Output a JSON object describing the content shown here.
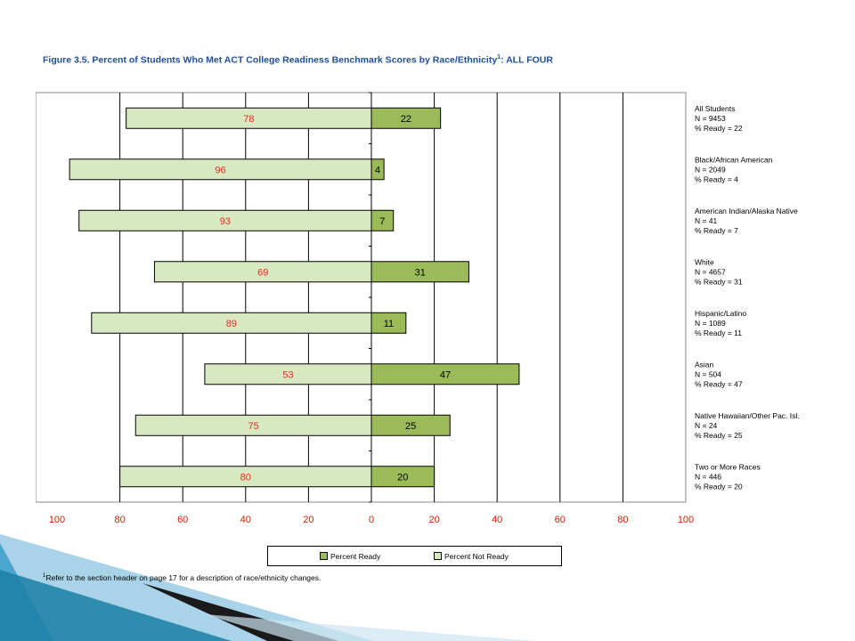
{
  "figure": {
    "title": "Figure 3.5.  Percent of Students Who Met ACT College Readiness Benchmark Scores by Race/Ethnicity",
    "title_sup": "1",
    "title_suffix": ": ALL FOUR"
  },
  "legend": {
    "ready_label": "Percent Ready",
    "not_ready_label": "Percent Not Ready"
  },
  "footnote": {
    "marker": "1",
    "text": "Refer to the section header on page 17 for a description of race/ethnicity changes."
  },
  "colors": {
    "ready": "#9bbb59",
    "not_ready": "#d8e8c1",
    "not_ready_label": "#e03020",
    "tick_label": "#cc2200",
    "title": "#1f4e9a",
    "slide_teal": "#1b7fa5"
  },
  "chart_data": {
    "type": "bar",
    "orientation": "horizontal-diverging",
    "xlim": [
      -100,
      100
    ],
    "x_ticks": [
      -100,
      -80,
      -60,
      -40,
      -20,
      0,
      20,
      40,
      60,
      80,
      100
    ],
    "x_tick_labels": [
      "100",
      "80",
      "60",
      "40",
      "20",
      "0",
      "20",
      "40",
      "60",
      "80",
      "100"
    ],
    "grid": true,
    "legend_position": "bottom",
    "categories": [
      {
        "name": "All Students",
        "n_label": "N = 9453",
        "ready_label": "% Ready = 22"
      },
      {
        "name": "Black/African American",
        "n_label": "N = 2049",
        "ready_label": "% Ready = 4"
      },
      {
        "name": "American Indian/Alaska Native",
        "n_label": "N = 41",
        "ready_label": "% Ready = 7"
      },
      {
        "name": "White",
        "n_label": "N = 4657",
        "ready_label": "% Ready = 31"
      },
      {
        "name": "Hispanic/Latino",
        "n_label": "N = 1089",
        "ready_label": "% Ready = 11"
      },
      {
        "name": "Asian",
        "n_label": "N = 504",
        "ready_label": "% Ready = 47"
      },
      {
        "name": "Native Hawaiian/Other Pac. Isl.",
        "n_label": "N = 24",
        "ready_label": "% Ready = 25"
      },
      {
        "name": "Two or More Races",
        "n_label": "N = 446",
        "ready_label": "% Ready = 20"
      }
    ],
    "series": [
      {
        "name": "Percent Not Ready",
        "values": [
          78,
          96,
          93,
          69,
          89,
          53,
          75,
          80
        ]
      },
      {
        "name": "Percent Ready",
        "values": [
          22,
          4,
          7,
          31,
          11,
          47,
          25,
          20
        ]
      }
    ]
  }
}
